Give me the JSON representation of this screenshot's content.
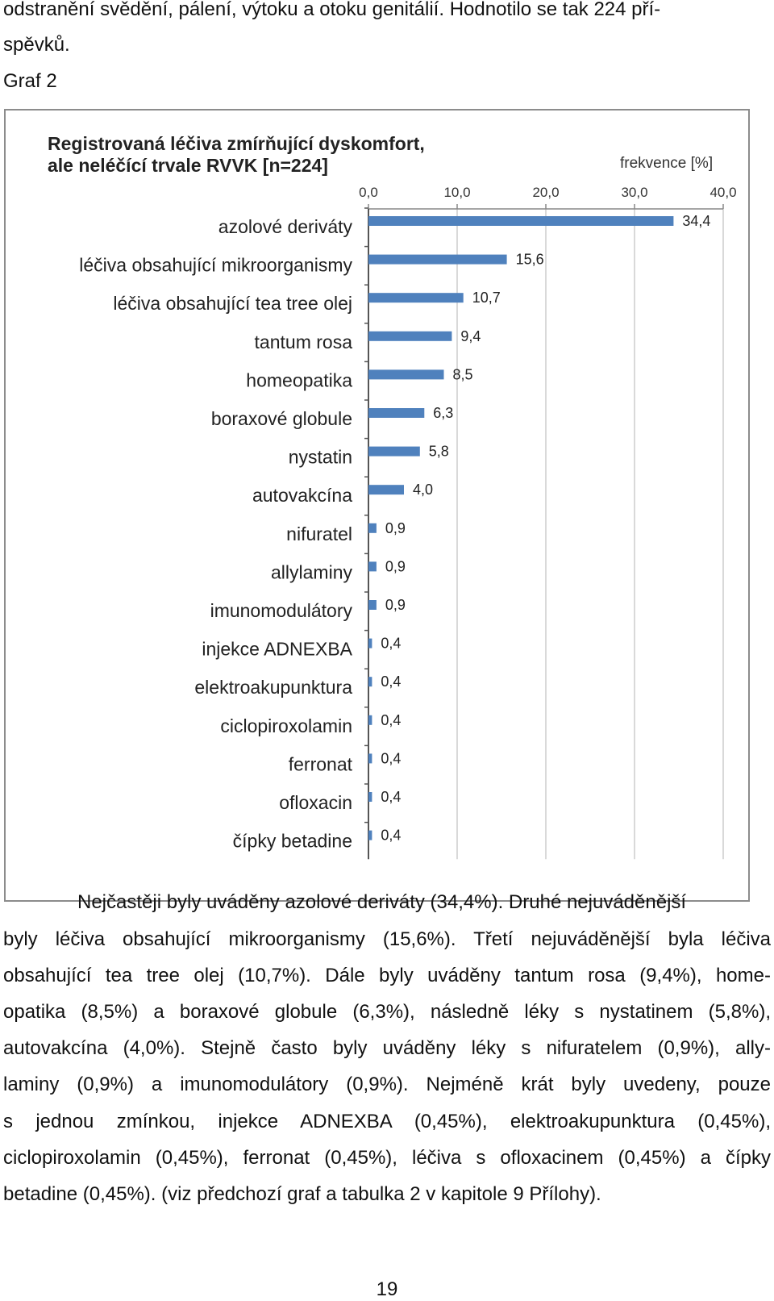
{
  "intro_lines": [
    "odstranění svědění, pálení, výtoku a otoku genitálií. Hodnotilo se tak 224 pří-",
    "spěvků."
  ],
  "figure_label": "Graf 2",
  "chart_data": {
    "type": "bar",
    "orientation": "horizontal",
    "title_lines": [
      "Registrovaná léčiva zmírňující dyskomfort,",
      "ale neléčící trvale RVVK [n=224]"
    ],
    "unit_label": "frekvence [%]",
    "xlim": [
      0,
      40
    ],
    "ticks": [
      "0,0",
      "10,0",
      "20,0",
      "30,0",
      "40,0"
    ],
    "tick_values": [
      0,
      10,
      20,
      30,
      40
    ],
    "grid": true,
    "bar_color": "#4f81bd",
    "categories": [
      "azolové deriváty",
      "léčiva obsahující mikroorganismy",
      "léčiva obsahující tea tree olej",
      "tantum rosa",
      "homeopatika",
      "boraxové globule",
      "nystatin",
      "autovakcína",
      "nifuratel",
      "allylaminy",
      "imunomodulátory",
      "injekce ADNEXBA",
      "elektroakupunktura",
      "ciclopiroxolamin",
      "ferronat",
      "ofloxacin",
      "čípky betadine"
    ],
    "values": [
      34.4,
      15.6,
      10.7,
      9.4,
      8.5,
      6.3,
      5.8,
      4.0,
      0.9,
      0.9,
      0.9,
      0.4,
      0.4,
      0.4,
      0.4,
      0.4,
      0.4
    ],
    "value_labels": [
      "34,4",
      "15,6",
      "10,7",
      "9,4",
      "8,5",
      "6,3",
      "5,8",
      "4,0",
      "0,9",
      "0,9",
      "0,9",
      "0,4",
      "0,4",
      "0,4",
      "0,4",
      "0,4",
      "0,4"
    ]
  },
  "body_lines": [
    "Nejčastěji byly uváděny azolové deriváty (34,4%). Druhé nejuváděnější",
    "byly léčiva obsahující mikroorganismy (15,6%). Třetí nejuváděnější byla léčiva",
    "obsahující tea tree olej (10,7%). Dále byly uváděny tantum rosa (9,4%), home-",
    "opatika (8,5%) a boraxové globule (6,3%), následně léky s nystatinem (5,8%),",
    "autovakcína (4,0%). Stejně často byly uváděny léky s nifuratelem (0,9%), ally-",
    "laminy (0,9%) a imunomodulátory (0,9%). Nejméně krát byly uvedeny, pouze",
    "s jednou zmínkou, injekce ADNEXBA (0,45%), elektroakupunktura (0,45%),",
    "ciclopiroxolamin (0,45%), ferronat (0,45%), léčiva s ofloxacinem (0,45%) a čípky",
    "betadine (0,45%). (viz předchozí graf a tabulka 2 v kapitole 9 Přílohy)."
  ],
  "page_number": "19"
}
